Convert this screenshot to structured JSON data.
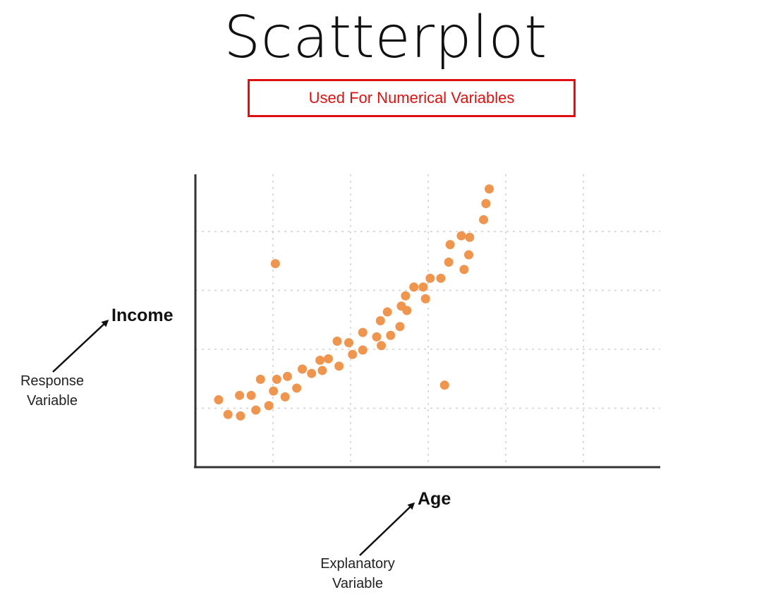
{
  "title": "Scatterplot",
  "subtitle": "Used For Numerical Variables",
  "chart_data": {
    "type": "scatter",
    "xlabel": "Age",
    "ylabel": "Income",
    "xlim": [
      0,
      10
    ],
    "ylim": [
      0,
      10
    ],
    "grid": true,
    "point_color": "#f0954e",
    "points": [
      {
        "x": 0.5,
        "y": 2.3
      },
      {
        "x": 0.7,
        "y": 1.8
      },
      {
        "x": 0.95,
        "y": 2.45
      },
      {
        "x": 0.97,
        "y": 1.75
      },
      {
        "x": 1.2,
        "y": 2.45
      },
      {
        "x": 1.3,
        "y": 1.95
      },
      {
        "x": 1.4,
        "y": 3.0
      },
      {
        "x": 1.58,
        "y": 2.1
      },
      {
        "x": 1.68,
        "y": 2.6
      },
      {
        "x": 1.75,
        "y": 3.0
      },
      {
        "x": 1.72,
        "y": 6.95
      },
      {
        "x": 1.93,
        "y": 2.4
      },
      {
        "x": 1.98,
        "y": 3.1
      },
      {
        "x": 2.18,
        "y": 2.7
      },
      {
        "x": 2.3,
        "y": 3.35
      },
      {
        "x": 2.5,
        "y": 3.2
      },
      {
        "x": 2.68,
        "y": 3.65
      },
      {
        "x": 2.73,
        "y": 3.3
      },
      {
        "x": 2.86,
        "y": 3.7
      },
      {
        "x": 3.05,
        "y": 4.3
      },
      {
        "x": 3.09,
        "y": 3.45
      },
      {
        "x": 3.3,
        "y": 4.25
      },
      {
        "x": 3.38,
        "y": 3.85
      },
      {
        "x": 3.6,
        "y": 4.0
      },
      {
        "x": 3.6,
        "y": 4.6
      },
      {
        "x": 3.9,
        "y": 4.45
      },
      {
        "x": 3.98,
        "y": 5.0
      },
      {
        "x": 4.0,
        "y": 4.15
      },
      {
        "x": 4.13,
        "y": 5.3
      },
      {
        "x": 4.2,
        "y": 4.5
      },
      {
        "x": 4.4,
        "y": 4.8
      },
      {
        "x": 4.43,
        "y": 5.5
      },
      {
        "x": 4.52,
        "y": 5.85
      },
      {
        "x": 4.55,
        "y": 5.35
      },
      {
        "x": 4.7,
        "y": 6.15
      },
      {
        "x": 4.9,
        "y": 6.15
      },
      {
        "x": 4.95,
        "y": 5.75
      },
      {
        "x": 5.05,
        "y": 6.45
      },
      {
        "x": 5.28,
        "y": 6.45
      },
      {
        "x": 5.36,
        "y": 2.8
      },
      {
        "x": 5.45,
        "y": 7.0
      },
      {
        "x": 5.48,
        "y": 7.6
      },
      {
        "x": 5.72,
        "y": 7.9
      },
      {
        "x": 5.78,
        "y": 6.75
      },
      {
        "x": 5.88,
        "y": 7.25
      },
      {
        "x": 5.9,
        "y": 7.85
      },
      {
        "x": 6.2,
        "y": 8.45
      },
      {
        "x": 6.25,
        "y": 9.0
      },
      {
        "x": 6.32,
        "y": 9.5
      }
    ]
  },
  "annotations": {
    "response": [
      "Response",
      "Variable"
    ],
    "explanatory": [
      "Explanatory",
      "Variable"
    ]
  },
  "colors": {
    "accent": "#e01010",
    "points": "#f0954e",
    "grid": "#d0d0d0",
    "axis": "#333333"
  }
}
